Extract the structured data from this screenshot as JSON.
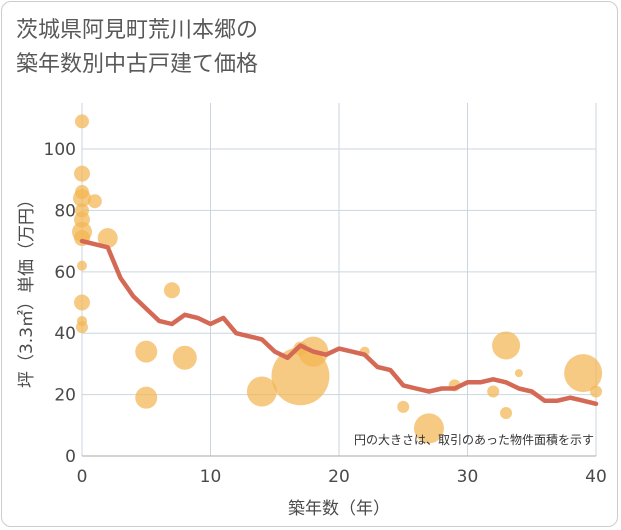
{
  "chart_data": {
    "type": "scatter",
    "title_lines": [
      "茨城県阿見町荒川本郷の",
      "築年数別中古戸建て価格"
    ],
    "xlabel": "築年数（年）",
    "ylabel": "坪（3.3㎡）単価（万円）",
    "xlim": [
      0,
      40
    ],
    "ylim": [
      0,
      115
    ],
    "x_ticks": [
      0,
      10,
      20,
      30,
      40
    ],
    "y_ticks": [
      0,
      20,
      40,
      60,
      80,
      100
    ],
    "grid": true,
    "note": "円の大きさは、取引のあった物件面積を示す",
    "colors": {
      "bubble": "#f2b552",
      "line": "#d46a55",
      "grid": "#c9d6df"
    },
    "bubbles": [
      {
        "x": 0,
        "y": 109,
        "size": 7
      },
      {
        "x": 0,
        "y": 92,
        "size": 8
      },
      {
        "x": 0,
        "y": 86,
        "size": 7
      },
      {
        "x": 0,
        "y": 84,
        "size": 9
      },
      {
        "x": 0,
        "y": 80,
        "size": 7
      },
      {
        "x": 0,
        "y": 77,
        "size": 8
      },
      {
        "x": 0,
        "y": 73,
        "size": 10
      },
      {
        "x": 0,
        "y": 71,
        "size": 8
      },
      {
        "x": 0,
        "y": 62,
        "size": 5
      },
      {
        "x": 0,
        "y": 50,
        "size": 8
      },
      {
        "x": 0,
        "y": 44,
        "size": 5
      },
      {
        "x": 0,
        "y": 42,
        "size": 6
      },
      {
        "x": 1,
        "y": 83,
        "size": 7
      },
      {
        "x": 2,
        "y": 71,
        "size": 10
      },
      {
        "x": 5,
        "y": 34,
        "size": 11
      },
      {
        "x": 5,
        "y": 19,
        "size": 11
      },
      {
        "x": 7,
        "y": 54,
        "size": 8
      },
      {
        "x": 8,
        "y": 32,
        "size": 12
      },
      {
        "x": 14,
        "y": 21,
        "size": 15
      },
      {
        "x": 17,
        "y": 26,
        "size": 29
      },
      {
        "x": 17,
        "y": 35,
        "size": 7
      },
      {
        "x": 18,
        "y": 34,
        "size": 15
      },
      {
        "x": 22,
        "y": 34,
        "size": 5
      },
      {
        "x": 25,
        "y": 16,
        "size": 6
      },
      {
        "x": 27,
        "y": 9,
        "size": 15
      },
      {
        "x": 29,
        "y": 23,
        "size": 6
      },
      {
        "x": 32,
        "y": 21,
        "size": 6
      },
      {
        "x": 33,
        "y": 36,
        "size": 14
      },
      {
        "x": 33,
        "y": 14,
        "size": 6
      },
      {
        "x": 34,
        "y": 27,
        "size": 4
      },
      {
        "x": 39,
        "y": 27,
        "size": 19
      },
      {
        "x": 40,
        "y": 21,
        "size": 6
      }
    ],
    "trend": {
      "x": [
        0,
        1,
        2,
        3,
        4,
        5,
        6,
        7,
        8,
        9,
        10,
        11,
        12,
        13,
        14,
        15,
        16,
        17,
        18,
        19,
        20,
        21,
        22,
        23,
        24,
        25,
        26,
        27,
        28,
        29,
        30,
        31,
        32,
        33,
        34,
        35,
        36,
        37,
        38,
        39,
        40
      ],
      "y": [
        70,
        69,
        68,
        58,
        52,
        48,
        44,
        43,
        46,
        45,
        43,
        45,
        40,
        39,
        38,
        34,
        32,
        36,
        34,
        33,
        35,
        34,
        33,
        29,
        28,
        23,
        22,
        21,
        22,
        22,
        24,
        24,
        25,
        24,
        22,
        21,
        18,
        18,
        19,
        18,
        17
      ]
    }
  }
}
